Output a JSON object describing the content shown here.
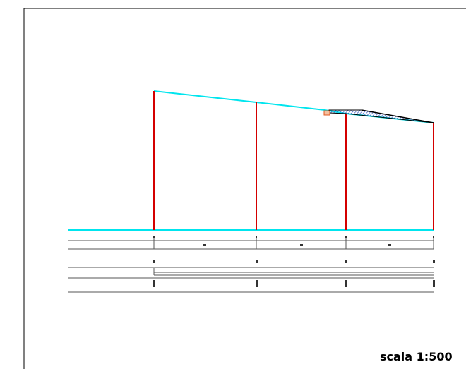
{
  "scale_label": "scala 1:500",
  "colors": {
    "terrain": "#00e5ee",
    "vertical": "#d40000",
    "table_line": "#555555",
    "frame": "#000000",
    "hatch": "#1a3fbf",
    "marker": "#e05a20"
  },
  "profile": {
    "stations": [
      {
        "id": "1",
        "index": 1
      },
      {
        "id": "2",
        "index": 2
      },
      {
        "id": "3",
        "index": 3
      },
      {
        "id": "4",
        "index": 4
      }
    ],
    "partial_labels": [
      "m",
      "m",
      "m"
    ]
  }
}
